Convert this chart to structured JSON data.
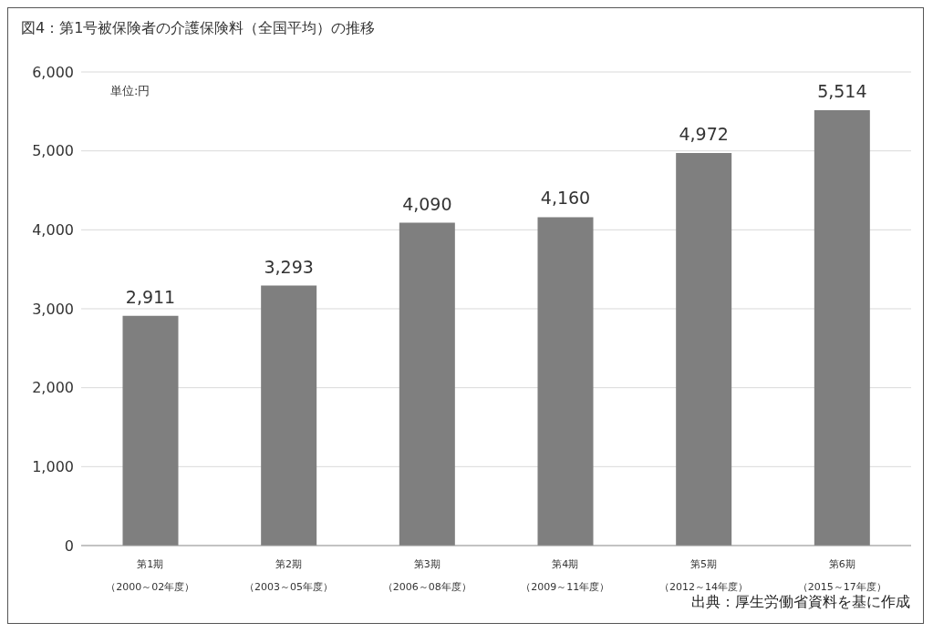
{
  "chart_data": {
    "type": "bar",
    "title": "図4：第1号被保険者の介護保険料（全国平均）の推移",
    "categories": [
      "第1期（2000～02年度）",
      "第2期（2003～05年度）",
      "第3期（2006～08年度）",
      "第4期（2009～11年度）",
      "第5期（2012～14年度）",
      "第6期（2015～17年度）"
    ],
    "values": [
      2911,
      3293,
      4090,
      4160,
      4972,
      5514
    ],
    "value_labels": [
      "2,911",
      "3,293",
      "4,090",
      "4,160",
      "4,972",
      "5,514"
    ],
    "color": "#7f7f7f",
    "ylim": [
      0,
      6000
    ],
    "yticks": [
      {
        "value": 0,
        "label": "0"
      },
      {
        "value": 1000,
        "label": "1,000"
      },
      {
        "value": 2000,
        "label": "2,000"
      },
      {
        "value": 3000,
        "label": "3,000"
      },
      {
        "value": 4000,
        "label": "4,000"
      },
      {
        "value": 5000,
        "label": "5,000"
      },
      {
        "value": 6000,
        "label": "6,000"
      }
    ],
    "grid": "y",
    "annotations": [
      "単位:円",
      "出典：厚生労働省資料を基に作成"
    ]
  }
}
